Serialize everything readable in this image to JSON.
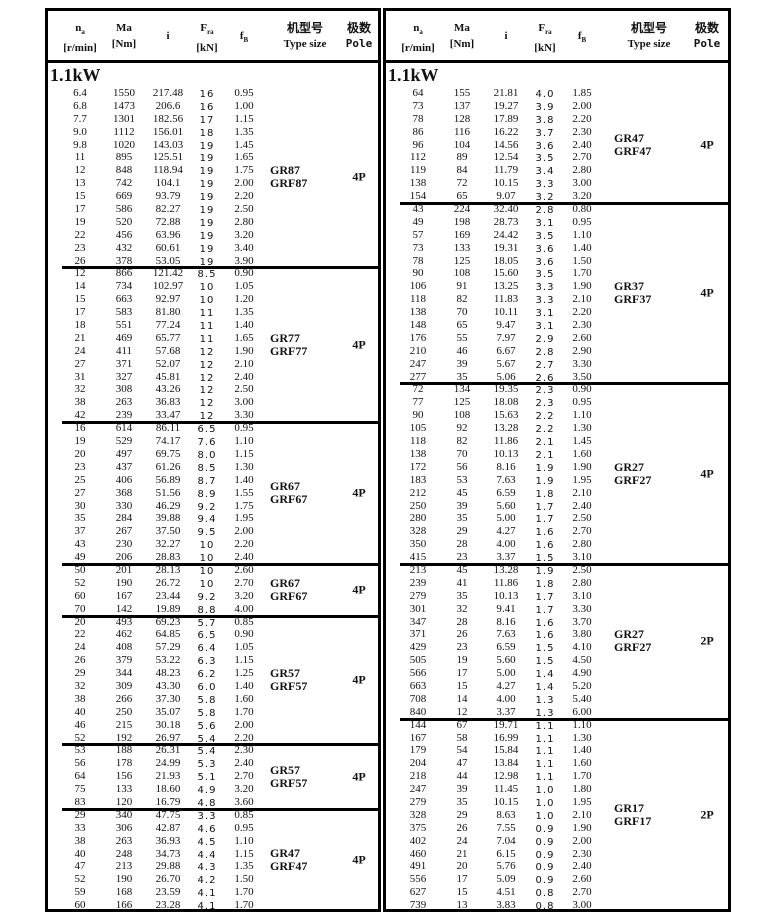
{
  "header": {
    "na": "n",
    "na_sub": "a",
    "na_unit": "[r/min]",
    "ma": "Ma",
    "ma_unit": "[Nm]",
    "i": "i",
    "fra": "F",
    "fra_sub": "ra",
    "fra_unit": "[kN]",
    "fb": "f",
    "fb_sub": "B",
    "type_cn": "机型号",
    "type_en": "Type size",
    "pole_cn": "极数",
    "pole_en": "Pole"
  },
  "left": {
    "power": "1.1kW",
    "groups": [
      {
        "type": [
          "GR87",
          "GRF87"
        ],
        "pole": "4P",
        "rows": [
          [
            "6.4",
            "1550",
            "217.48",
            "16",
            "0.95"
          ],
          [
            "6.8",
            "1473",
            "206.6",
            "16",
            "1.00"
          ],
          [
            "7.7",
            "1301",
            "182.56",
            "17",
            "1.15"
          ],
          [
            "9.0",
            "1112",
            "156.01",
            "18",
            "1.35"
          ],
          [
            "9.8",
            "1020",
            "143.03",
            "19",
            "1.45"
          ],
          [
            "11",
            "895",
            "125.51",
            "19",
            "1.65"
          ],
          [
            "12",
            "848",
            "118.94",
            "19",
            "1.75"
          ],
          [
            "13",
            "742",
            "104.1",
            "19",
            "2.00"
          ],
          [
            "15",
            "669",
            "93.79",
            "19",
            "2.20"
          ],
          [
            "17",
            "586",
            "82.27",
            "19",
            "2.50"
          ],
          [
            "19",
            "520",
            "72.88",
            "19",
            "2.80"
          ],
          [
            "22",
            "456",
            "63.96",
            "19",
            "3.20"
          ],
          [
            "23",
            "432",
            "60.61",
            "19",
            "3.40"
          ],
          [
            "26",
            "378",
            "53.05",
            "19",
            "3.90"
          ]
        ]
      },
      {
        "type": [
          "GR77",
          "GRF77"
        ],
        "pole": "4P",
        "rows": [
          [
            "12",
            "866",
            "121.42",
            "8.5",
            "0.90"
          ],
          [
            "14",
            "734",
            "102.97",
            "10",
            "1.05"
          ],
          [
            "15",
            "663",
            "92.97",
            "10",
            "1.20"
          ],
          [
            "17",
            "583",
            "81.80",
            "11",
            "1.35"
          ],
          [
            "18",
            "551",
            "77.24",
            "11",
            "1.40"
          ],
          [
            "21",
            "469",
            "65.77",
            "11",
            "1.65"
          ],
          [
            "24",
            "411",
            "57.68",
            "12",
            "1.90"
          ],
          [
            "27",
            "371",
            "52.07",
            "12",
            "2.10"
          ],
          [
            "31",
            "327",
            "45.81",
            "12",
            "2.40"
          ],
          [
            "32",
            "308",
            "43.26",
            "12",
            "2.50"
          ],
          [
            "38",
            "263",
            "36.83",
            "12",
            "3.00"
          ],
          [
            "42",
            "239",
            "33.47",
            "12",
            "3.30"
          ]
        ]
      },
      {
        "type": [
          "GR67",
          "GRF67"
        ],
        "pole": "4P",
        "rows": [
          [
            "16",
            "614",
            "86.11",
            "6.5",
            "0.95"
          ],
          [
            "19",
            "529",
            "74.17",
            "7.6",
            "1.10"
          ],
          [
            "20",
            "497",
            "69.75",
            "8.0",
            "1.15"
          ],
          [
            "23",
            "437",
            "61.26",
            "8.5",
            "1.30"
          ],
          [
            "25",
            "406",
            "56.89",
            "8.7",
            "1.40"
          ],
          [
            "27",
            "368",
            "51.56",
            "8.9",
            "1.55"
          ],
          [
            "30",
            "330",
            "46.29",
            "9.2",
            "1.75"
          ],
          [
            "35",
            "284",
            "39.88",
            "9.4",
            "1.95"
          ],
          [
            "37",
            "267",
            "37.50",
            "9.5",
            "2.00"
          ],
          [
            "43",
            "230",
            "32.27",
            "10",
            "2.20"
          ],
          [
            "49",
            "206",
            "28.83",
            "10",
            "2.40"
          ]
        ]
      },
      {
        "type": [
          "GR67",
          "GRF67"
        ],
        "pole": "4P",
        "rows": [
          [
            "50",
            "201",
            "28.13",
            "10",
            "2.60"
          ],
          [
            "52",
            "190",
            "26.72",
            "10",
            "2.70"
          ],
          [
            "60",
            "167",
            "23.44",
            "9.2",
            "3.20"
          ],
          [
            "70",
            "142",
            "19.89",
            "8.8",
            "4.00"
          ]
        ]
      },
      {
        "type": [
          "GR57",
          "GRF57"
        ],
        "pole": "4P",
        "rows": [
          [
            "20",
            "493",
            "69.23",
            "5.7",
            "0.85"
          ],
          [
            "22",
            "462",
            "64.85",
            "6.5",
            "0.90"
          ],
          [
            "24",
            "408",
            "57.29",
            "6.4",
            "1.05"
          ],
          [
            "26",
            "379",
            "53.22",
            "6.3",
            "1.15"
          ],
          [
            "29",
            "344",
            "48.23",
            "6.2",
            "1.25"
          ],
          [
            "32",
            "309",
            "43.30",
            "6.0",
            "1.40"
          ],
          [
            "38",
            "266",
            "37.30",
            "5.8",
            "1.60"
          ],
          [
            "40",
            "250",
            "35.07",
            "5.8",
            "1.70"
          ],
          [
            "46",
            "215",
            "30.18",
            "5.6",
            "2.00"
          ],
          [
            "52",
            "192",
            "26.97",
            "5.4",
            "2.20"
          ]
        ]
      },
      {
        "type": [
          "GR57",
          "GRF57"
        ],
        "pole": "4P",
        "rows": [
          [
            "53",
            "188",
            "26.31",
            "5.4",
            "2.30"
          ],
          [
            "56",
            "178",
            "24.99",
            "5.3",
            "2.40"
          ],
          [
            "64",
            "156",
            "21.93",
            "5.1",
            "2.70"
          ],
          [
            "75",
            "133",
            "18.60",
            "4.9",
            "3.20"
          ],
          [
            "83",
            "120",
            "16.79",
            "4.8",
            "3.60"
          ]
        ]
      },
      {
        "type": [
          "GR47",
          "GRF47"
        ],
        "pole": "4P",
        "rows": [
          [
            "29",
            "340",
            "47.75",
            "3.3",
            "0.85"
          ],
          [
            "33",
            "306",
            "42.87",
            "4.6",
            "0.95"
          ],
          [
            "38",
            "263",
            "36.93",
            "4.5",
            "1.10"
          ],
          [
            "40",
            "248",
            "34.73",
            "4.4",
            "1.15"
          ],
          [
            "47",
            "213",
            "29.88",
            "4.3",
            "1.35"
          ],
          [
            "52",
            "190",
            "26.70",
            "4.2",
            "1.50"
          ],
          [
            "59",
            "168",
            "23.59",
            "4.1",
            "1.70"
          ],
          [
            "60",
            "166",
            "23.28",
            "4.1",
            "1.70"
          ]
        ]
      }
    ]
  },
  "right": {
    "power": "1.1kW",
    "groups": [
      {
        "type": [
          "GR47",
          "GRF47"
        ],
        "pole": "4P",
        "rows": [
          [
            "64",
            "155",
            "21.81",
            "4.0",
            "1.85"
          ],
          [
            "73",
            "137",
            "19.27",
            "3.9",
            "2.00"
          ],
          [
            "78",
            "128",
            "17.89",
            "3.8",
            "2.20"
          ],
          [
            "86",
            "116",
            "16.22",
            "3.7",
            "2.30"
          ],
          [
            "96",
            "104",
            "14.56",
            "3.6",
            "2.40"
          ],
          [
            "112",
            "89",
            "12.54",
            "3.5",
            "2.70"
          ],
          [
            "119",
            "84",
            "11.79",
            "3.4",
            "2.80"
          ],
          [
            "138",
            "72",
            "10.15",
            "3.3",
            "3.00"
          ],
          [
            "154",
            "65",
            "9.07",
            "3.2",
            "3.20"
          ]
        ]
      },
      {
        "type": [
          "GR37",
          "GRF37"
        ],
        "pole": "4P",
        "rows": [
          [
            "43",
            "224",
            "32.40",
            "2.8",
            "0.80"
          ],
          [
            "49",
            "198",
            "28.73",
            "3.1",
            "0.95"
          ],
          [
            "57",
            "169",
            "24.42",
            "3.5",
            "1.10"
          ],
          [
            "73",
            "133",
            "19.31",
            "3.6",
            "1.40"
          ],
          [
            "78",
            "125",
            "18.05",
            "3.6",
            "1.50"
          ],
          [
            "90",
            "108",
            "15.60",
            "3.5",
            "1.70"
          ],
          [
            "106",
            "91",
            "13.25",
            "3.3",
            "1.90"
          ],
          [
            "118",
            "82",
            "11.83",
            "3.3",
            "2.10"
          ],
          [
            "138",
            "70",
            "10.11",
            "3.1",
            "2.20"
          ],
          [
            "148",
            "65",
            "9.47",
            "3.1",
            "2.30"
          ],
          [
            "176",
            "55",
            "7.97",
            "2.9",
            "2.60"
          ],
          [
            "210",
            "46",
            "6.67",
            "2.8",
            "2.90"
          ],
          [
            "247",
            "39",
            "5.67",
            "2.7",
            "3.30"
          ],
          [
            "277",
            "35",
            "5.06",
            "2.6",
            "3.50"
          ]
        ]
      },
      {
        "type": [
          "GR27",
          "GRF27"
        ],
        "pole": "4P",
        "rows": [
          [
            "72",
            "134",
            "19.35",
            "2.3",
            "0.90"
          ],
          [
            "77",
            "125",
            "18.08",
            "2.3",
            "0.95"
          ],
          [
            "90",
            "108",
            "15.63",
            "2.2",
            "1.10"
          ],
          [
            "105",
            "92",
            "13.28",
            "2.2",
            "1.30"
          ],
          [
            "118",
            "82",
            "11.86",
            "2.1",
            "1.45"
          ],
          [
            "138",
            "70",
            "10.13",
            "2.1",
            "1.60"
          ],
          [
            "172",
            "56",
            "8.16",
            "1.9",
            "1.90"
          ],
          [
            "183",
            "53",
            "7.63",
            "1.9",
            "1.95"
          ],
          [
            "212",
            "45",
            "6.59",
            "1.8",
            "2.10"
          ],
          [
            "250",
            "39",
            "5.60",
            "1.7",
            "2.40"
          ],
          [
            "280",
            "35",
            "5.00",
            "1.7",
            "2.50"
          ],
          [
            "328",
            "29",
            "4.27",
            "1.6",
            "2.70"
          ],
          [
            "350",
            "28",
            "4.00",
            "1.6",
            "2.80"
          ],
          [
            "415",
            "23",
            "3.37",
            "1.5",
            "3.10"
          ]
        ]
      },
      {
        "type": [
          "GR27",
          "GRF27"
        ],
        "pole": "2P",
        "rows": [
          [
            "213",
            "45",
            "13.28",
            "1.9",
            "2.50"
          ],
          [
            "239",
            "41",
            "11.86",
            "1.8",
            "2.80"
          ],
          [
            "279",
            "35",
            "10.13",
            "1.7",
            "3.10"
          ],
          [
            "301",
            "32",
            "9.41",
            "1.7",
            "3.30"
          ],
          [
            "347",
            "28",
            "8.16",
            "1.6",
            "3.70"
          ],
          [
            "371",
            "26",
            "7.63",
            "1.6",
            "3.80"
          ],
          [
            "429",
            "23",
            "6.59",
            "1.5",
            "4.10"
          ],
          [
            "505",
            "19",
            "5.60",
            "1.5",
            "4.50"
          ],
          [
            "566",
            "17",
            "5.00",
            "1.4",
            "4.90"
          ],
          [
            "663",
            "15",
            "4.27",
            "1.4",
            "5.20"
          ],
          [
            "708",
            "14",
            "4.00",
            "1.3",
            "5.40"
          ],
          [
            "840",
            "12",
            "3.37",
            "1.3",
            "6.00"
          ]
        ]
      },
      {
        "type": [
          "GR17",
          "GRF17"
        ],
        "pole": "2P",
        "rows": [
          [
            "144",
            "67",
            "19.71",
            "1.1",
            "1.10"
          ],
          [
            "167",
            "58",
            "16.99",
            "1.1",
            "1.30"
          ],
          [
            "179",
            "54",
            "15.84",
            "1.1",
            "1.40"
          ],
          [
            "204",
            "47",
            "13.84",
            "1.1",
            "1.60"
          ],
          [
            "218",
            "44",
            "12.98",
            "1.1",
            "1.70"
          ],
          [
            "247",
            "39",
            "11.45",
            "1.0",
            "1.80"
          ],
          [
            "279",
            "35",
            "10.15",
            "1.0",
            "1.95"
          ],
          [
            "328",
            "29",
            "8.63",
            "1.0",
            "2.10"
          ],
          [
            "375",
            "26",
            "7.55",
            "0.9",
            "1.90"
          ],
          [
            "402",
            "24",
            "7.04",
            "0.9",
            "2.00"
          ],
          [
            "460",
            "21",
            "6.15",
            "0.9",
            "2.30"
          ],
          [
            "491",
            "20",
            "5.76",
            "0.9",
            "2.40"
          ],
          [
            "556",
            "17",
            "5.09",
            "0.9",
            "2.60"
          ],
          [
            "627",
            "15",
            "4.51",
            "0.8",
            "2.70"
          ],
          [
            "739",
            "13",
            "3.83",
            "0.8",
            "3.00"
          ]
        ]
      }
    ]
  }
}
